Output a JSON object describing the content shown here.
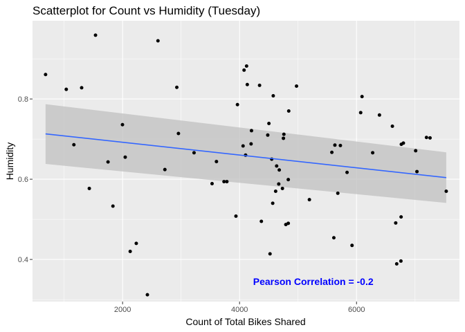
{
  "chart_data": {
    "type": "scatter",
    "title": "Scatterplot for Count vs Humidity (Tuesday)",
    "xlabel": "Count of Total Bikes Shared",
    "ylabel": "Humidity",
    "xlim": [
      460,
      7760
    ],
    "ylim": [
      0.295,
      0.995
    ],
    "xticks": [
      2000,
      4000,
      6000
    ],
    "xtick_labels": [
      "2000",
      "4000",
      "6000"
    ],
    "yticks": [
      0.4,
      0.6,
      0.8
    ],
    "ytick_labels": [
      "0.4",
      "0.6",
      "0.8"
    ],
    "grid": true,
    "legend": "none",
    "colors": {
      "panel": "#ebebeb",
      "grid": "#ffffff",
      "point": "#000000",
      "fit_line": "#3366ff",
      "ci_band": "#bebebe",
      "annotation": "#0000ff"
    },
    "annotation": {
      "text": "Pearson Correlation = -0.2",
      "x": 5260,
      "y": 0.345
    },
    "fit": {
      "x": [
        683,
        7534
      ],
      "y": [
        0.713,
        0.604
      ],
      "ci_upper": [
        0.787,
        0.667
      ],
      "ci_lower": [
        0.638,
        0.541
      ]
    },
    "points": [
      {
        "x": 683,
        "y": 0.861
      },
      {
        "x": 1037,
        "y": 0.824
      },
      {
        "x": 1167,
        "y": 0.686
      },
      {
        "x": 1300,
        "y": 0.828
      },
      {
        "x": 1431,
        "y": 0.577
      },
      {
        "x": 1537,
        "y": 0.959
      },
      {
        "x": 1751,
        "y": 0.643
      },
      {
        "x": 1835,
        "y": 0.533
      },
      {
        "x": 1998,
        "y": 0.736
      },
      {
        "x": 2045,
        "y": 0.655
      },
      {
        "x": 2130,
        "y": 0.42
      },
      {
        "x": 2234,
        "y": 0.44
      },
      {
        "x": 2424,
        "y": 0.312
      },
      {
        "x": 2605,
        "y": 0.945
      },
      {
        "x": 2723,
        "y": 0.624
      },
      {
        "x": 2927,
        "y": 0.829
      },
      {
        "x": 2955,
        "y": 0.714
      },
      {
        "x": 3222,
        "y": 0.666
      },
      {
        "x": 3530,
        "y": 0.589
      },
      {
        "x": 3605,
        "y": 0.644
      },
      {
        "x": 3734,
        "y": 0.594
      },
      {
        "x": 3783,
        "y": 0.594
      },
      {
        "x": 3938,
        "y": 0.508
      },
      {
        "x": 3964,
        "y": 0.786
      },
      {
        "x": 4060,
        "y": 0.683
      },
      {
        "x": 4077,
        "y": 0.872
      },
      {
        "x": 4103,
        "y": 0.66
      },
      {
        "x": 4120,
        "y": 0.882
      },
      {
        "x": 4132,
        "y": 0.836
      },
      {
        "x": 4204,
        "y": 0.721
      },
      {
        "x": 4197,
        "y": 0.688
      },
      {
        "x": 4342,
        "y": 0.834
      },
      {
        "x": 4373,
        "y": 0.495
      },
      {
        "x": 4482,
        "y": 0.71
      },
      {
        "x": 4502,
        "y": 0.739
      },
      {
        "x": 4521,
        "y": 0.414
      },
      {
        "x": 4550,
        "y": 0.65
      },
      {
        "x": 4567,
        "y": 0.54
      },
      {
        "x": 4576,
        "y": 0.808
      },
      {
        "x": 4617,
        "y": 0.57
      },
      {
        "x": 4634,
        "y": 0.633
      },
      {
        "x": 4670,
        "y": 0.588
      },
      {
        "x": 4679,
        "y": 0.623
      },
      {
        "x": 4733,
        "y": 0.577
      },
      {
        "x": 4750,
        "y": 0.702
      },
      {
        "x": 4758,
        "y": 0.712
      },
      {
        "x": 4791,
        "y": 0.487
      },
      {
        "x": 4833,
        "y": 0.49
      },
      {
        "x": 4833,
        "y": 0.599
      },
      {
        "x": 4841,
        "y": 0.77
      },
      {
        "x": 4974,
        "y": 0.832
      },
      {
        "x": 5194,
        "y": 0.549
      },
      {
        "x": 5578,
        "y": 0.667
      },
      {
        "x": 5612,
        "y": 0.454
      },
      {
        "x": 5630,
        "y": 0.685
      },
      {
        "x": 5680,
        "y": 0.565
      },
      {
        "x": 5724,
        "y": 0.684
      },
      {
        "x": 5838,
        "y": 0.617
      },
      {
        "x": 5923,
        "y": 0.435
      },
      {
        "x": 6071,
        "y": 0.766
      },
      {
        "x": 6094,
        "y": 0.806
      },
      {
        "x": 6276,
        "y": 0.666
      },
      {
        "x": 6392,
        "y": 0.76
      },
      {
        "x": 6613,
        "y": 0.732
      },
      {
        "x": 6670,
        "y": 0.491
      },
      {
        "x": 6687,
        "y": 0.389
      },
      {
        "x": 6759,
        "y": 0.396
      },
      {
        "x": 6762,
        "y": 0.506
      },
      {
        "x": 6766,
        "y": 0.687
      },
      {
        "x": 6801,
        "y": 0.69
      },
      {
        "x": 7011,
        "y": 0.671
      },
      {
        "x": 7033,
        "y": 0.619
      },
      {
        "x": 7196,
        "y": 0.704
      },
      {
        "x": 7257,
        "y": 0.703
      },
      {
        "x": 7534,
        "y": 0.57
      }
    ]
  }
}
